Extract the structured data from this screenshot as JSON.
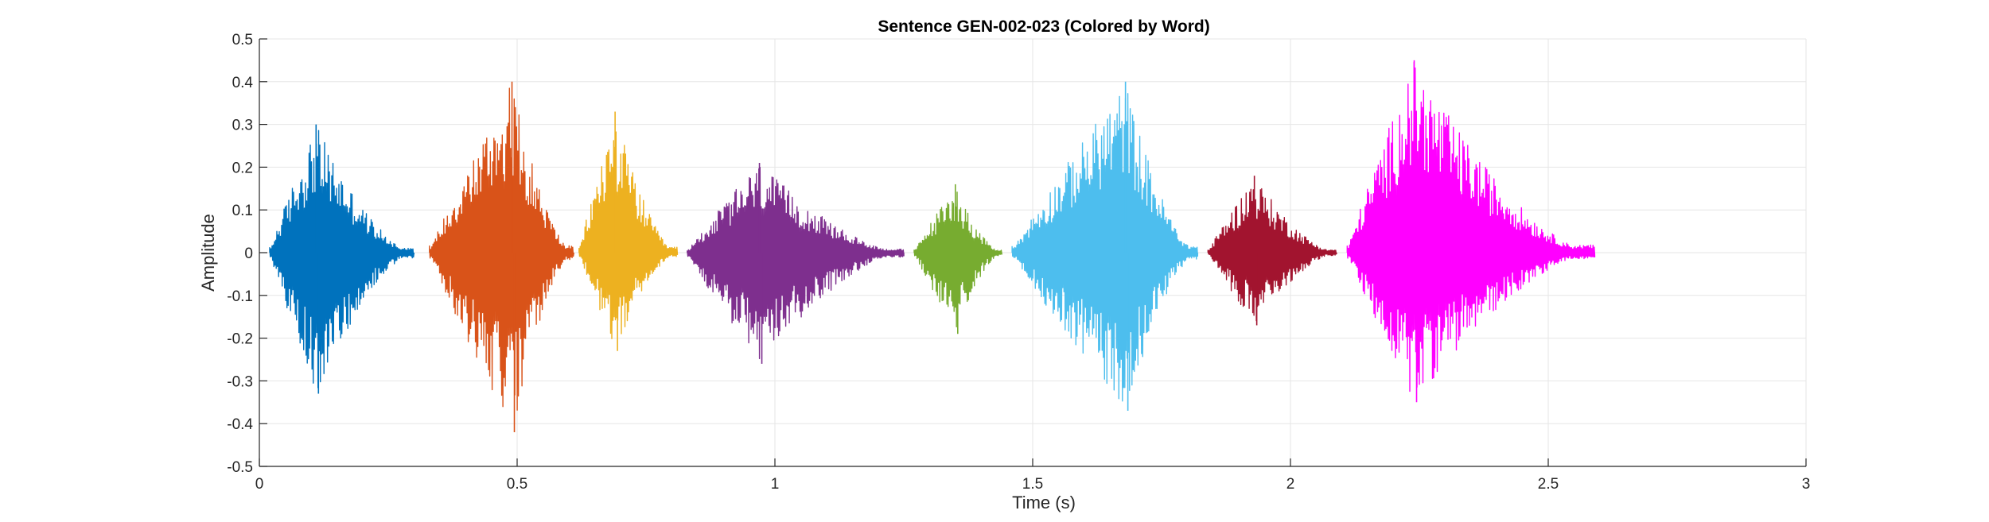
{
  "chart_data": {
    "type": "line",
    "title": "Sentence GEN-002-023 (Colored by Word)",
    "xlabel": "Time (s)",
    "ylabel": "Amplitude",
    "xlim": [
      0,
      3
    ],
    "ylim": [
      -0.5,
      0.5
    ],
    "xticks": [
      0,
      0.5,
      1,
      1.5,
      2,
      2.5,
      3
    ],
    "xtick_labels": [
      "0",
      "0.5",
      "1",
      "1.5",
      "2",
      "2.5",
      "3"
    ],
    "yticks": [
      -0.5,
      -0.4,
      -0.3,
      -0.2,
      -0.1,
      0,
      0.1,
      0.2,
      0.3,
      0.4,
      0.5
    ],
    "ytick_labels": [
      "-0.5",
      "-0.4",
      "-0.3",
      "-0.2",
      "-0.1",
      "0",
      "0.1",
      "0.2",
      "0.3",
      "0.4",
      "0.5"
    ],
    "grid": true,
    "series": [
      {
        "color": "#0072BD",
        "segments": [
          {
            "start": 0.02,
            "end": 0.3,
            "peak_t": 0.11,
            "max": 0.3,
            "min": -0.33
          }
        ]
      },
      {
        "color": "#D95319",
        "segments": [
          {
            "start": 0.33,
            "end": 0.61,
            "peak_t": 0.49,
            "max": 0.4,
            "min": -0.42
          }
        ]
      },
      {
        "color": "#EDB120",
        "segments": [
          {
            "start": 0.62,
            "end": 0.81,
            "peak_t": 0.69,
            "max": 0.33,
            "min": -0.23
          }
        ]
      },
      {
        "color": "#7E2F8E",
        "segments": [
          {
            "start": 0.83,
            "end": 1.25,
            "peak_t": 0.97,
            "max": 0.21,
            "min": -0.26
          }
        ]
      },
      {
        "color": "#77AC30",
        "segments": [
          {
            "start": 1.27,
            "end": 1.44,
            "peak_t": 1.35,
            "max": 0.16,
            "min": -0.19
          }
        ]
      },
      {
        "color": "#4DBEEE",
        "segments": [
          {
            "start": 1.46,
            "end": 1.82,
            "peak_t": 1.68,
            "max": 0.4,
            "min": -0.37
          }
        ]
      },
      {
        "color": "#A2142F",
        "segments": [
          {
            "start": 1.84,
            "end": 2.09,
            "peak_t": 1.93,
            "max": 0.18,
            "min": -0.17
          }
        ]
      },
      {
        "color": "#FF00FF",
        "segments": [
          {
            "start": 2.11,
            "end": 2.59,
            "peak_t": 2.24,
            "max": 0.45,
            "min": -0.35
          }
        ]
      }
    ]
  }
}
